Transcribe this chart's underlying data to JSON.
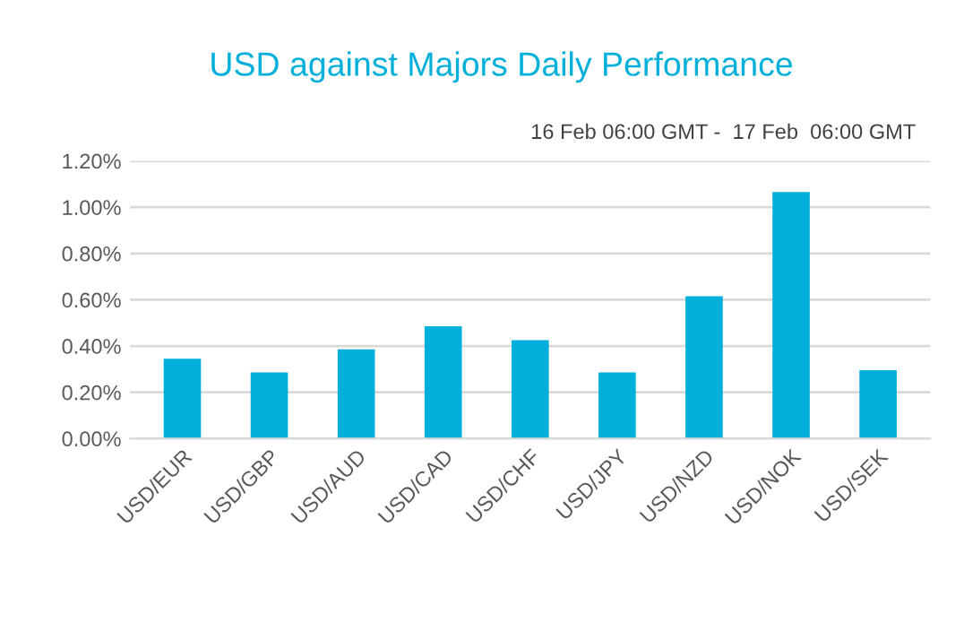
{
  "chart_data": {
    "type": "bar",
    "title": "USD against Majors Daily Performance",
    "subtitle": "16 Feb 06:00 GMT -  17 Feb  06:00 GMT",
    "categories": [
      "USD/EUR",
      "USD/GBP",
      "USD/AUD",
      "USD/CAD",
      "USD/CHF",
      "USD/JPY",
      "USD/NZD",
      "USD/NOK",
      "USD/SEK"
    ],
    "values": [
      0.34,
      0.28,
      0.38,
      0.48,
      0.42,
      0.28,
      0.61,
      1.06,
      0.29
    ],
    "color": "#00b0da",
    "ylim": [
      0,
      1.2
    ],
    "yticks": [
      {
        "value": 0,
        "label": "0.00%"
      },
      {
        "value": 0.2,
        "label": "0.20%"
      },
      {
        "value": 0.4,
        "label": "0.40%"
      },
      {
        "value": 0.6,
        "label": "0.60%"
      },
      {
        "value": 0.8,
        "label": "0.80%"
      },
      {
        "value": 1.0,
        "label": "1.00%"
      },
      {
        "value": 1.2,
        "label": "1.20%"
      }
    ],
    "grid": "y"
  }
}
